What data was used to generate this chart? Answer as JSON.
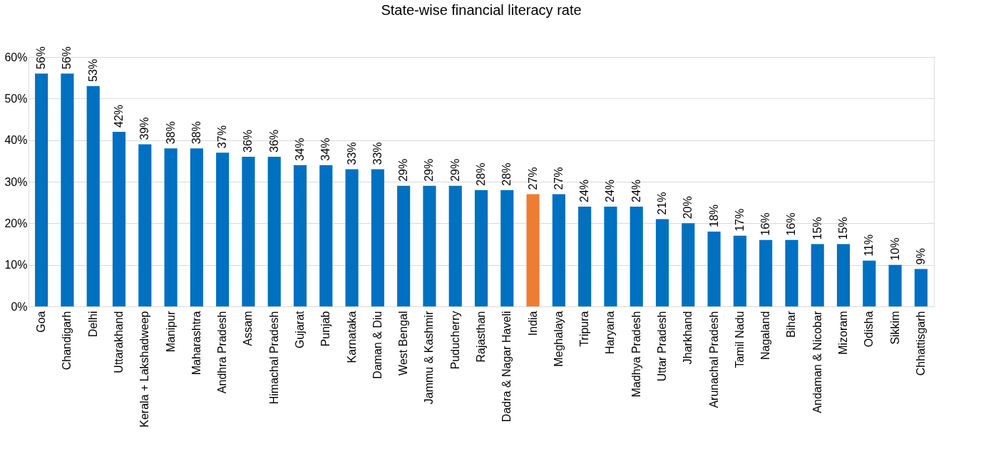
{
  "chart_data": {
    "type": "bar",
    "title": "State-wise financial literacy rate",
    "categories": [
      "Goa",
      "Chandigarh",
      "Delhi",
      "Uttarakhand",
      "Kerala + Lakshadweep",
      "Manipur",
      "Maharashtra",
      "Andhra Pradesh",
      "Assam",
      "Himachal Pradesh",
      "Gujarat",
      "Punjab",
      "Karnataka",
      "Daman & Diu",
      "West Bengal",
      "Jammu & Kashmir",
      "Puducherry",
      "Rajasthan",
      "Dadra & Nagar Haveli",
      "India",
      "Meghalaya",
      "Tripura",
      "Haryana",
      "Madhya Pradesh",
      "Uttar Pradesh",
      "Jharkhand",
      "Arunachal Pradesh",
      "Tamil Nadu",
      "Nagaland",
      "Bihar",
      "Andaman & Nicobar",
      "Mizoram",
      "Odisha",
      "Sikkim",
      "Chhattisgarh"
    ],
    "values": [
      56,
      56,
      53,
      42,
      39,
      38,
      38,
      37,
      36,
      36,
      34,
      34,
      33,
      33,
      29,
      29,
      29,
      28,
      28,
      27,
      27,
      24,
      24,
      24,
      21,
      20,
      18,
      17,
      16,
      16,
      15,
      15,
      11,
      10,
      9
    ],
    "value_labels": [
      "56%",
      "56%",
      "53%",
      "42%",
      "39%",
      "38%",
      "38%",
      "37%",
      "36%",
      "36%",
      "34%",
      "34%",
      "33%",
      "33%",
      "29%",
      "29%",
      "29%",
      "28%",
      "28%",
      "27%",
      "27%",
      "24%",
      "24%",
      "24%",
      "21%",
      "20%",
      "18%",
      "17%",
      "16%",
      "16%",
      "15%",
      "15%",
      "11%",
      "10%",
      "9%"
    ],
    "colors": [
      "#0070c0",
      "#0070c0",
      "#0070c0",
      "#0070c0",
      "#0070c0",
      "#0070c0",
      "#0070c0",
      "#0070c0",
      "#0070c0",
      "#0070c0",
      "#0070c0",
      "#0070c0",
      "#0070c0",
      "#0070c0",
      "#0070c0",
      "#0070c0",
      "#0070c0",
      "#0070c0",
      "#0070c0",
      "#ed7d31",
      "#0070c0",
      "#0070c0",
      "#0070c0",
      "#0070c0",
      "#0070c0",
      "#0070c0",
      "#0070c0",
      "#0070c0",
      "#0070c0",
      "#0070c0",
      "#0070c0",
      "#0070c0",
      "#0070c0",
      "#0070c0",
      "#0070c0"
    ],
    "ylim": [
      0,
      60
    ],
    "yticks": [
      {
        "value": 0,
        "label": "0%"
      },
      {
        "value": 10,
        "label": "10%"
      },
      {
        "value": 20,
        "label": "20%"
      },
      {
        "value": 30,
        "label": "30%"
      },
      {
        "value": 40,
        "label": "40%"
      },
      {
        "value": 50,
        "label": "50%"
      },
      {
        "value": 60,
        "label": "60%"
      }
    ],
    "grid": "y"
  }
}
